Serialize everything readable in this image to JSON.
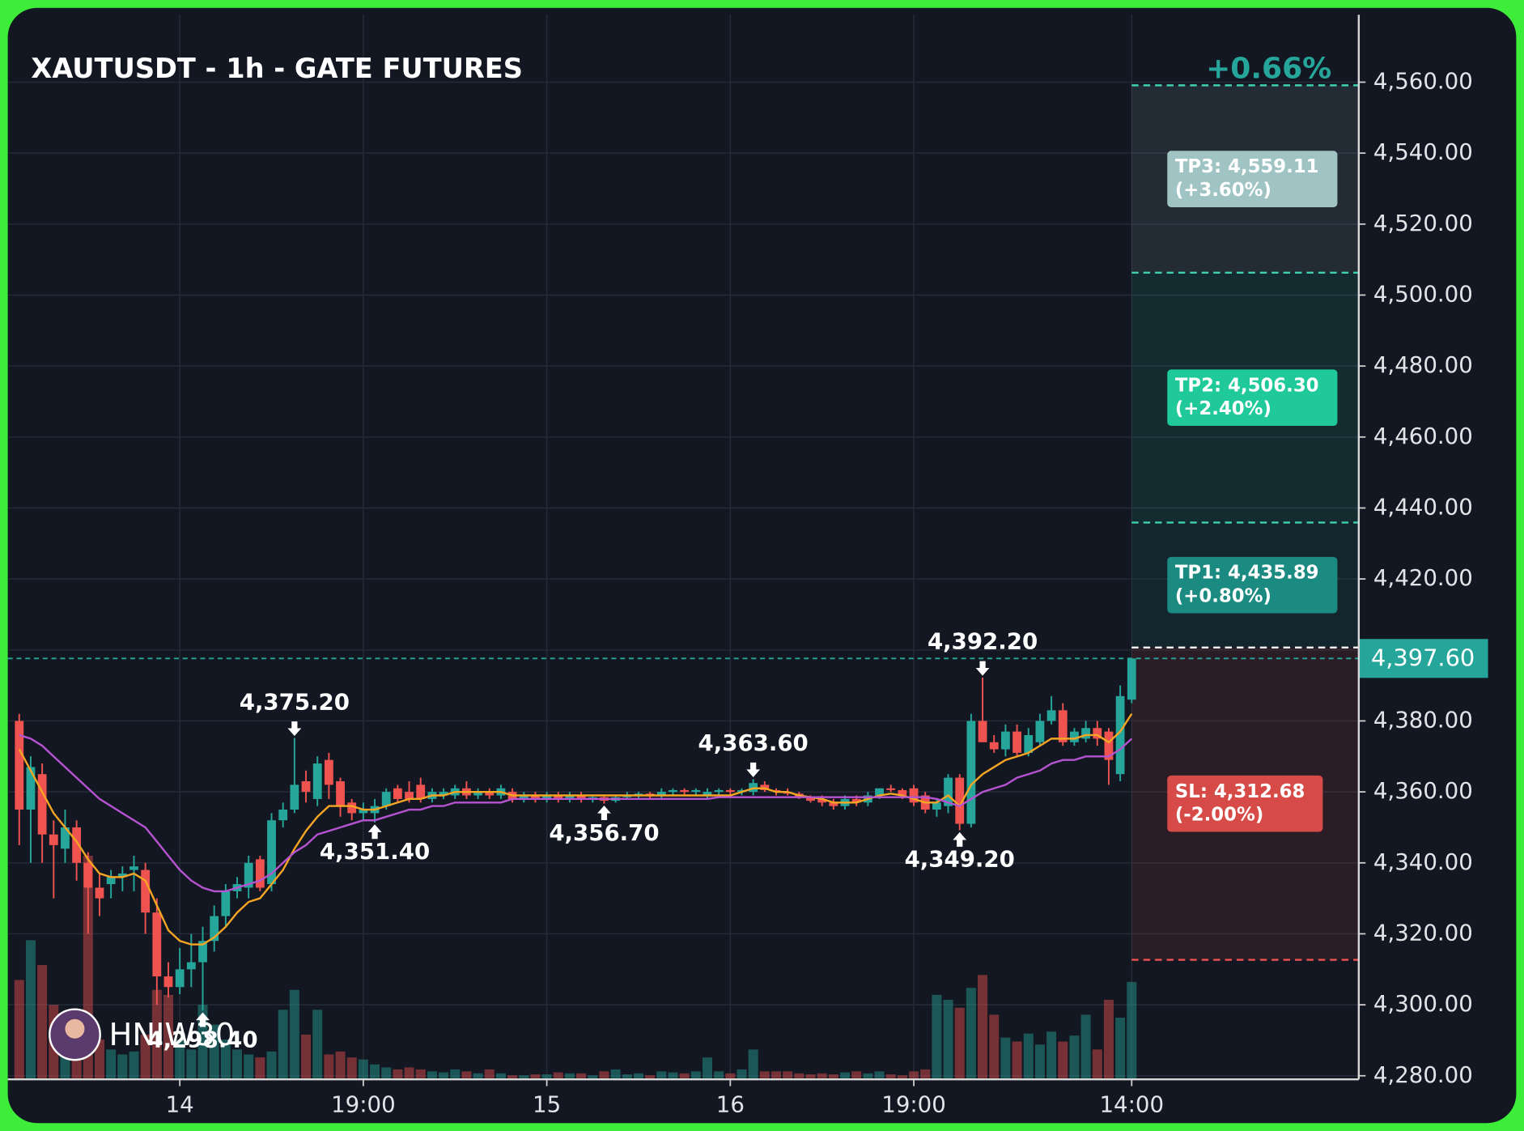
{
  "chart_data": {
    "type": "candlestick",
    "title": "XAUTUSDT - 1h - GATE FUTURES",
    "change": "+0.66%",
    "change_color": "#26a69a",
    "watermark": "HNIW30",
    "categories": [
      null,
      null,
      null,
      null,
      null,
      null,
      null,
      null,
      null,
      null,
      null,
      null,
      null,
      null,
      "14",
      null,
      null,
      null,
      null,
      null,
      null,
      null,
      null,
      null,
      null,
      null,
      null,
      null,
      null,
      null,
      "19:00",
      null,
      null,
      null,
      null,
      null,
      null,
      null,
      null,
      null,
      null,
      null,
      null,
      null,
      null,
      null,
      "15",
      null,
      null,
      null,
      null,
      null,
      null,
      null,
      null,
      null,
      null,
      null,
      null,
      null,
      null,
      null,
      "16",
      null,
      null,
      null,
      null,
      null,
      null,
      null,
      null,
      null,
      null,
      null,
      null,
      null,
      null,
      null,
      "19:00",
      null,
      null,
      null,
      null,
      null,
      null,
      null,
      null,
      null,
      null,
      null,
      null,
      null,
      null,
      null,
      null,
      null,
      null,
      "14:00"
    ],
    "open": [
      4380,
      4355,
      4365,
      4348,
      4344,
      4350,
      4340,
      4333,
      4334,
      4336,
      4338,
      4338,
      4326,
      4308,
      4305,
      4310,
      4312,
      4318,
      4325,
      4332,
      4333,
      4341,
      4334,
      4352,
      4355,
      4363,
      4358,
      4369,
      4363,
      4357,
      4354,
      4354,
      4356,
      4361,
      4360,
      4362,
      4358,
      4359,
      4359,
      4361,
      4359,
      4360,
      4359,
      4360,
      4358,
      4359,
      4358,
      4359,
      4358,
      4359,
      4358,
      4358.5,
      4357.5,
      4358.5,
      4359,
      4359.5,
      4359,
      4360,
      4360.5,
      4360,
      4359,
      4360,
      4360.5,
      4360,
      4360,
      4362,
      4360.5,
      4360,
      4359.5,
      4358.5,
      4358,
      4357,
      4356,
      4358,
      4357,
      4359,
      4361,
      4360.5,
      4361,
      4359,
      4355,
      4356,
      4364,
      4351,
      4380,
      4374,
      4372,
      4377,
      4371,
      4374,
      4380,
      4383,
      4374,
      4375,
      4378,
      4377,
      4365,
      4386
    ],
    "high": [
      4382,
      4370,
      4368,
      4352,
      4355,
      4352,
      4343,
      4337,
      4338,
      4339,
      4342,
      4340,
      4330,
      4312,
      4316,
      4320,
      4322,
      4328,
      4334,
      4336,
      4342,
      4342,
      4354,
      4357,
      4375.2,
      4366,
      4370,
      4371,
      4364,
      4358,
      4357,
      4358,
      4361,
      4362,
      4363,
      4364,
      4361,
      4361,
      4362,
      4363,
      4361,
      4361,
      4362,
      4361,
      4360,
      4360,
      4360,
      4360,
      4360,
      4360,
      4359,
      4359,
      4359,
      4360,
      4360,
      4360,
      4361,
      4361,
      4361,
      4361,
      4361,
      4361,
      4361,
      4361,
      4363.6,
      4363,
      4361,
      4361,
      4360,
      4359,
      4359,
      4358,
      4359,
      4359,
      4360,
      4361,
      4362,
      4361,
      4362,
      4360,
      4358,
      4365,
      4365,
      4382,
      4392.2,
      4376,
      4379,
      4379,
      4378,
      4382,
      4387,
      4385,
      4378,
      4380,
      4380,
      4378,
      4390,
      4397.6
    ],
    "low": [
      4345,
      4340,
      4340,
      4330,
      4340,
      4335,
      4320,
      4325,
      4330,
      4332,
      4332,
      4320,
      4300,
      4302,
      4303,
      4305,
      4298.4,
      4315,
      4322,
      4330,
      4330,
      4332,
      4332,
      4350,
      4354,
      4357,
      4356,
      4358,
      4353,
      4352,
      4352,
      4351.4,
      4355,
      4357,
      4357,
      4357,
      4357,
      4358,
      4358,
      4358,
      4358,
      4358,
      4358,
      4357,
      4357,
      4357,
      4357,
      4357,
      4357,
      4357,
      4357,
      4356.7,
      4357,
      4358,
      4358,
      4358,
      4358,
      4359,
      4359,
      4359,
      4358,
      4359,
      4359,
      4359,
      4359,
      4360,
      4359,
      4359,
      4358,
      4357,
      4356,
      4355,
      4355,
      4356,
      4356,
      4358,
      4360,
      4358,
      4356,
      4354,
      4353,
      4354,
      4349.2,
      4350,
      4374,
      4371,
      4370,
      4370,
      4370,
      4373,
      4379,
      4373,
      4373,
      4374,
      4373,
      4362,
      4363,
      4385
    ],
    "close": [
      4355,
      4367,
      4348,
      4345,
      4350,
      4340,
      4333,
      4330,
      4336,
      4337,
      4339,
      4326,
      4308,
      4305,
      4310,
      4312,
      4318,
      4325,
      4332,
      4334,
      4340,
      4333,
      4352,
      4355,
      4362,
      4360,
      4368,
      4362,
      4356,
      4354,
      4355,
      4356,
      4360,
      4358,
      4358,
      4358,
      4360,
      4360,
      4361,
      4359,
      4360,
      4359,
      4361,
      4358,
      4359,
      4358,
      4359,
      4358,
      4359,
      4358,
      4358.5,
      4357.5,
      4358.5,
      4359,
      4359.5,
      4359,
      4360,
      4360.5,
      4360,
      4360.5,
      4360,
      4360.5,
      4360,
      4360.5,
      4362.5,
      4360.5,
      4360,
      4359.5,
      4358.5,
      4357.5,
      4357,
      4356,
      4358,
      4357,
      4359,
      4361,
      4360.5,
      4359,
      4357,
      4355,
      4357,
      4364,
      4351,
      4380,
      4374,
      4372,
      4377,
      4371,
      4376,
      4380,
      4383,
      4374,
      4377,
      4378,
      4375,
      4369,
      4387,
      4397.6
    ],
    "volume": [
      100,
      140,
      115,
      75,
      60,
      45,
      225,
      40,
      30,
      25,
      28,
      45,
      90,
      85,
      40,
      30,
      75,
      55,
      40,
      30,
      25,
      22,
      28,
      70,
      90,
      45,
      70,
      25,
      28,
      22,
      20,
      15,
      12,
      10,
      12,
      10,
      8,
      7,
      10,
      8,
      6,
      10,
      6,
      4,
      4,
      5,
      5,
      7,
      6,
      6,
      4,
      8,
      10,
      5,
      6,
      4,
      8,
      7,
      6,
      8,
      22,
      8,
      6,
      10,
      30,
      8,
      8,
      8,
      6,
      5,
      6,
      5,
      7,
      8,
      6,
      8,
      5,
      4,
      8,
      10,
      85,
      80,
      72,
      92,
      105,
      65,
      42,
      38,
      46,
      35,
      48,
      38,
      44,
      65,
      30,
      80,
      62,
      98
    ],
    "up_color": "#26a69a",
    "down_color": "#ef5350",
    "ma_lines": [
      {
        "color": "#f5a524",
        "values": [
          4372,
          4366,
          4360,
          4354,
          4350,
          4346,
          4341,
          4337,
          4336,
          4336,
          4337,
          4335,
          4328,
          4321,
          4318,
          4317,
          4317,
          4319,
          4322,
          4326,
          4329,
          4330,
          4334,
          4338,
          4344,
          4349,
          4353,
          4356,
          4356,
          4356,
          4355,
          4355,
          4356,
          4357,
          4358,
          4358,
          4359,
          4359,
          4360,
          4360,
          4360,
          4360,
          4360,
          4359,
          4359,
          4359,
          4359,
          4359,
          4359,
          4359,
          4359,
          4359,
          4359,
          4359,
          4359,
          4359,
          4359,
          4359,
          4359,
          4359,
          4359,
          4359,
          4359,
          4360,
          4361,
          4361,
          4360,
          4360,
          4359,
          4358.5,
          4358,
          4357,
          4357,
          4357,
          4358,
          4359,
          4359.5,
          4359,
          4358,
          4357,
          4357,
          4359,
          4356,
          4362,
          4365,
          4367,
          4369,
          4370,
          4371,
          4373,
          4375,
          4375,
          4375,
          4376,
          4376,
          4374,
          4377,
          4382
        ]
      },
      {
        "color": "#b553d0",
        "values": [
          4376,
          4375,
          4373,
          4370,
          4367,
          4364,
          4361,
          4358,
          4356,
          4354,
          4352,
          4350,
          4346,
          4342,
          4338,
          4335,
          4333,
          4332,
          4332,
          4333,
          4334,
          4335,
          4337,
          4340,
          4343,
          4345,
          4348,
          4349,
          4350,
          4351,
          4352,
          4352,
          4353,
          4354,
          4355,
          4355,
          4356,
          4356,
          4357,
          4357,
          4357,
          4357,
          4357,
          4358,
          4358,
          4358,
          4358,
          4358,
          4358,
          4358,
          4358,
          4358,
          4358,
          4358,
          4358,
          4358,
          4358,
          4358,
          4358,
          4358,
          4358,
          4358.5,
          4358.5,
          4358.5,
          4358.5,
          4358.5,
          4358.5,
          4358.5,
          4358.5,
          4358.5,
          4358.5,
          4358.5,
          4358.5,
          4358.5,
          4358.5,
          4358.5,
          4358.5,
          4358.5,
          4358.5,
          4358.5,
          4358,
          4357,
          4356,
          4358,
          4360,
          4361,
          4362,
          4364,
          4365,
          4366,
          4368,
          4369,
          4369,
          4370,
          4370,
          4370,
          4372,
          4375
        ]
      }
    ],
    "xlim": [
      -1,
      116.8
    ],
    "ylim": [
      4279,
      4579
    ],
    "yticks": [
      {
        "value": 4280,
        "label": "4,280.00"
      },
      {
        "value": 4300,
        "label": "4,300.00"
      },
      {
        "value": 4320,
        "label": "4,320.00"
      },
      {
        "value": 4340,
        "label": "4,340.00"
      },
      {
        "value": 4360,
        "label": "4,360.00"
      },
      {
        "value": 4380,
        "label": "4,380.00"
      },
      {
        "value": 4400,
        "label": "4,400.00"
      },
      {
        "value": 4420,
        "label": "4,420.00"
      },
      {
        "value": 4440,
        "label": "4,440.00"
      },
      {
        "value": 4460,
        "label": "4,460.00"
      },
      {
        "value": 4480,
        "label": "4,480.00"
      },
      {
        "value": 4500,
        "label": "4,500.00"
      },
      {
        "value": 4520,
        "label": "4,520.00"
      },
      {
        "value": 4540,
        "label": "4,540.00"
      },
      {
        "value": 4560,
        "label": "4,560.00"
      }
    ],
    "grid": true,
    "current_price": {
      "value": 4397.6,
      "label": "4,397.60",
      "color": "#26a69a"
    },
    "entry": 4400.68,
    "targets": [
      {
        "value": 4435.89,
        "label": "TP1: 4,435.89",
        "note": "(+0.80%)",
        "color": "#1b8a80"
      },
      {
        "value": 4506.3,
        "label": "TP2: 4,506.30",
        "note": "(+2.40%)",
        "color": "#1fc99a"
      },
      {
        "value": 4559.11,
        "label": "TP3: 4,559.11",
        "note": "(+3.60%)",
        "color": "#9fc4c3"
      }
    ],
    "stop": {
      "value": 4312.68,
      "label": "SL: 4,312.68",
      "note": "(-2.00%)",
      "color": "#d64b47"
    },
    "annotations": [
      {
        "x": 16,
        "value": 4298.4,
        "label": "4,298.40",
        "direction": "up"
      },
      {
        "x": 24,
        "value": 4375.2,
        "label": "4,375.20",
        "direction": "down"
      },
      {
        "x": 31,
        "value": 4351.4,
        "label": "4,351.40",
        "direction": "up"
      },
      {
        "x": 51,
        "value": 4356.7,
        "label": "4,356.70",
        "direction": "up"
      },
      {
        "x": 64,
        "value": 4363.6,
        "label": "4,363.60",
        "direction": "down"
      },
      {
        "x": 82,
        "value": 4349.2,
        "label": "4,349.20",
        "direction": "up"
      },
      {
        "x": 84,
        "value": 4392.2,
        "label": "4,392.20",
        "direction": "down"
      }
    ]
  }
}
